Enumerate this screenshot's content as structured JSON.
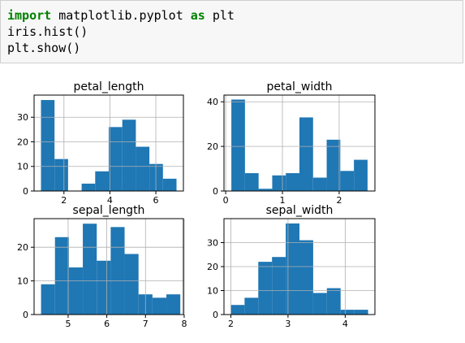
{
  "code_cell": {
    "lines": [
      [
        {
          "t": "import",
          "kw": true
        },
        {
          "t": " matplotlib.pyplot ",
          "kw": false
        },
        {
          "t": "as",
          "kw": true
        },
        {
          "t": " plt",
          "kw": false
        }
      ],
      [
        {
          "t": "iris.hist()",
          "kw": false
        }
      ],
      [
        {
          "t": "plt.show()",
          "kw": false
        }
      ]
    ]
  },
  "colors": {
    "bar": "#1f77b4",
    "grid": "#b0b0b0",
    "keyword": "#008000"
  },
  "chart_data": [
    {
      "type": "bar",
      "title": "petal_length",
      "xlim": [
        0.7,
        7.2
      ],
      "ylim": [
        0,
        39
      ],
      "xticks": [
        2,
        4,
        6
      ],
      "yticks": [
        0,
        10,
        20,
        30
      ],
      "bin_edges": [
        1.0,
        1.59,
        2.18,
        2.77,
        3.36,
        3.95,
        4.54,
        5.13,
        5.72,
        6.31,
        6.9
      ],
      "values": [
        37,
        13,
        0,
        3,
        8,
        26,
        29,
        18,
        11,
        5
      ],
      "grid": true
    },
    {
      "type": "bar",
      "title": "petal_width",
      "xlim": [
        -0.03,
        2.63
      ],
      "ylim": [
        0,
        43
      ],
      "xticks": [
        0,
        1,
        2
      ],
      "yticks": [
        0,
        20,
        40
      ],
      "bin_edges": [
        0.1,
        0.34,
        0.58,
        0.82,
        1.06,
        1.3,
        1.54,
        1.78,
        2.02,
        2.26,
        2.5
      ],
      "values": [
        41,
        8,
        1,
        7,
        8,
        33,
        6,
        23,
        9,
        14
      ],
      "grid": true
    },
    {
      "type": "bar",
      "title": "sepal_length",
      "xlim": [
        4.12,
        7.98
      ],
      "ylim": [
        0,
        28.5
      ],
      "xticks": [
        5,
        6,
        7,
        8
      ],
      "yticks": [
        0,
        10,
        20
      ],
      "bin_edges": [
        4.3,
        4.66,
        5.02,
        5.38,
        5.74,
        6.1,
        6.46,
        6.82,
        7.18,
        7.54,
        7.9
      ],
      "values": [
        9,
        23,
        14,
        27,
        16,
        26,
        18,
        6,
        5,
        6
      ],
      "grid": true
    },
    {
      "type": "bar",
      "title": "sepal_width",
      "xlim": [
        1.88,
        4.52
      ],
      "ylim": [
        0,
        40
      ],
      "xticks": [
        2,
        3,
        4
      ],
      "yticks": [
        0,
        10,
        20,
        30
      ],
      "bin_edges": [
        2.0,
        2.24,
        2.48,
        2.72,
        2.96,
        3.2,
        3.44,
        3.68,
        3.92,
        4.16,
        4.4
      ],
      "values": [
        4,
        7,
        22,
        24,
        38,
        31,
        9,
        11,
        2,
        2
      ],
      "grid": true
    }
  ]
}
